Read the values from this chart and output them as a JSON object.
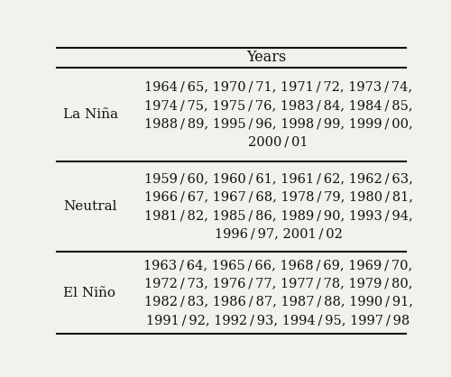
{
  "title": "Years",
  "rows": [
    {
      "label": "La Niña",
      "years_lines": [
        "1964 / 65, 1970 / 71, 1971 / 72, 1973 / 74,",
        "1974 / 75, 1975 / 76, 1983 / 84, 1984 / 85,",
        "1988 / 89, 1995 / 96, 1998 / 99, 1999 / 00,",
        "2000 / 01"
      ]
    },
    {
      "label": "Neutral",
      "years_lines": [
        "1959 / 60, 1960 / 61, 1961 / 62, 1962 / 63,",
        "1966 / 67, 1967 / 68, 1978 / 79, 1980 / 81,",
        "1981 / 82, 1985 / 86, 1989 / 90, 1993 / 94,",
        "1996 / 97, 2001 / 02"
      ]
    },
    {
      "label": "El Niño",
      "years_lines": [
        "1963 / 64, 1965 / 66, 1968 / 69, 1969 / 70,",
        "1972 / 73, 1976 / 77, 1977 / 78, 1979 / 80,",
        "1982 / 83, 1986 / 87, 1987 / 88, 1990 / 91,",
        "1991 / 92, 1992 / 93, 1994 / 95, 1997 / 98"
      ]
    }
  ],
  "bg_color": "#f2f1ed",
  "text_color": "#111111",
  "line_color": "#111111",
  "label_fontsize": 11.0,
  "years_fontsize": 10.5,
  "title_fontsize": 11.5
}
